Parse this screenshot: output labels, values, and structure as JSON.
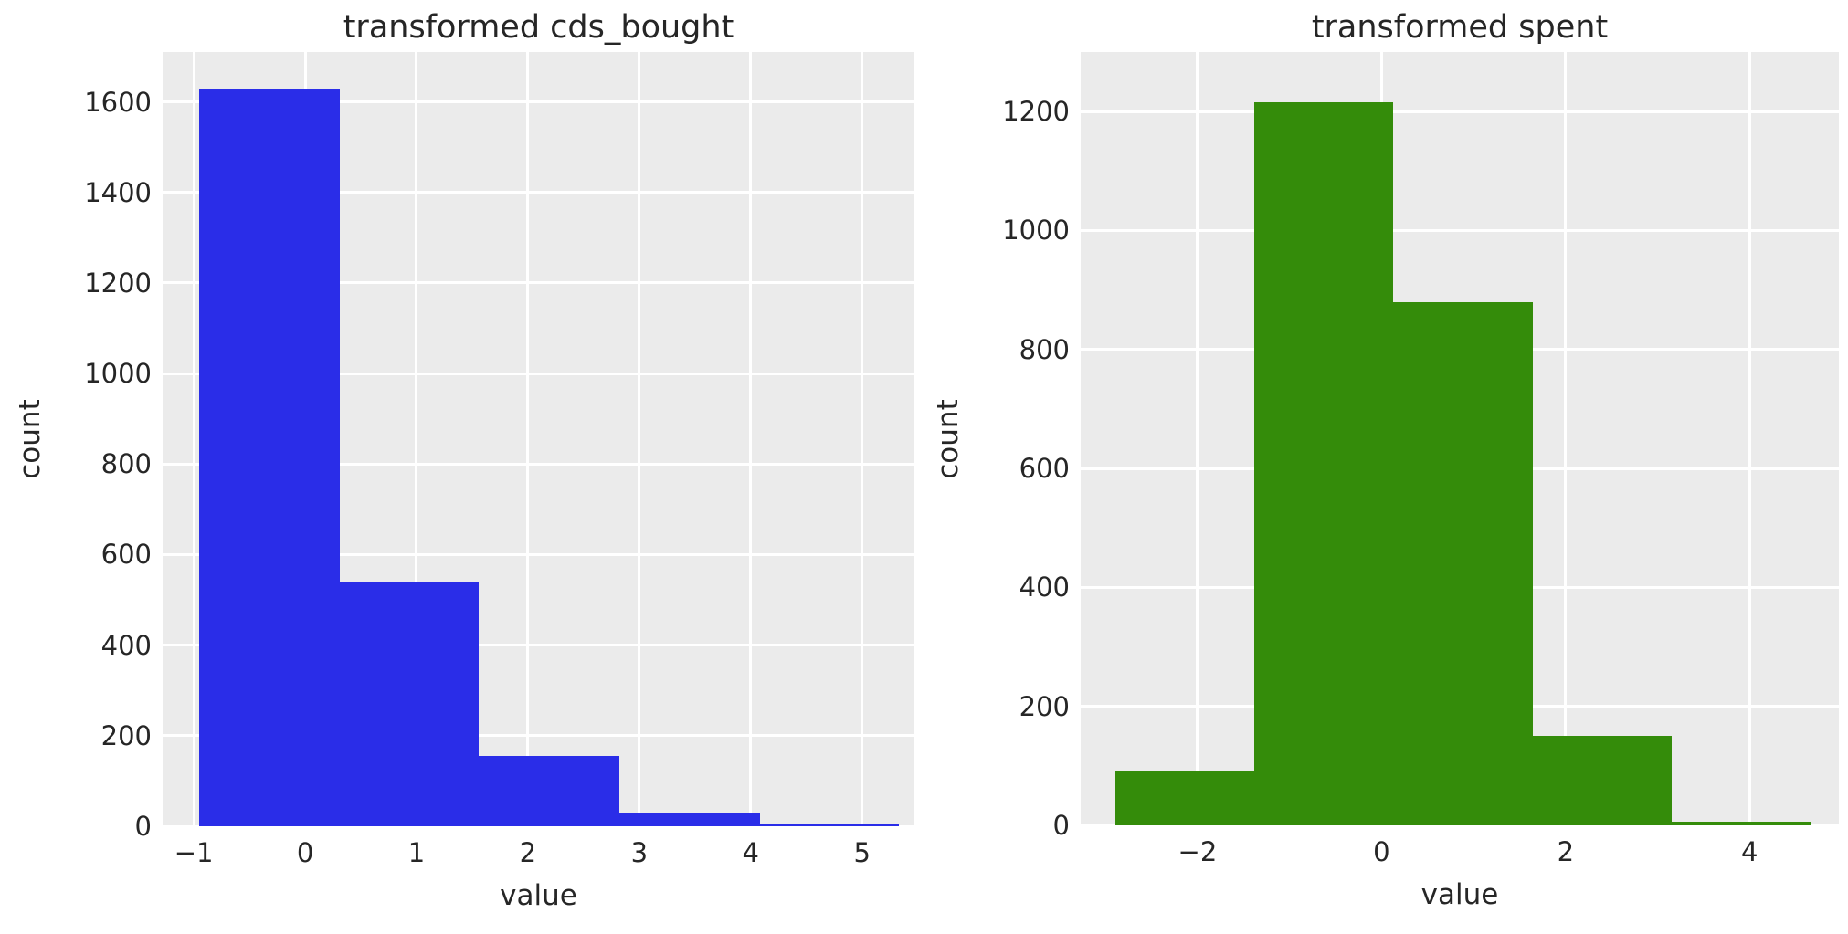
{
  "style": {
    "figure_bg": "#ffffff",
    "axes_bg": "#ebebeb",
    "grid_color": "#ffffff",
    "text_color": "#262626"
  },
  "chart_data": [
    {
      "type": "bar",
      "subtype": "histogram",
      "title": "transformed cds_bought",
      "xlabel": "value",
      "ylabel": "count",
      "bar_color": "#2a2de8",
      "bin_edges": [
        -0.95,
        0.31,
        1.56,
        2.82,
        4.08,
        5.33
      ],
      "counts": [
        1630,
        540,
        155,
        30,
        4
      ],
      "xticks": [
        -1,
        0,
        1,
        2,
        3,
        4,
        5
      ],
      "yticks": [
        0,
        200,
        400,
        600,
        800,
        1000,
        1200,
        1400,
        1600
      ],
      "xlim": [
        -1.28,
        5.47
      ],
      "ylim": [
        0,
        1710
      ],
      "grid": "on",
      "legend": "none"
    },
    {
      "type": "bar",
      "subtype": "histogram",
      "title": "transformed spent",
      "xlabel": "value",
      "ylabel": "count",
      "bar_color": "#348c0a",
      "bin_edges": [
        -2.89,
        -1.38,
        0.13,
        1.64,
        3.15,
        4.66
      ],
      "counts": [
        92,
        1215,
        880,
        150,
        6
      ],
      "xticks": [
        -2,
        0,
        2,
        4
      ],
      "yticks": [
        0,
        200,
        400,
        600,
        800,
        1000,
        1200
      ],
      "xlim": [
        -3.27,
        4.97
      ],
      "ylim": [
        0,
        1300
      ],
      "grid": "on",
      "legend": "none"
    }
  ]
}
